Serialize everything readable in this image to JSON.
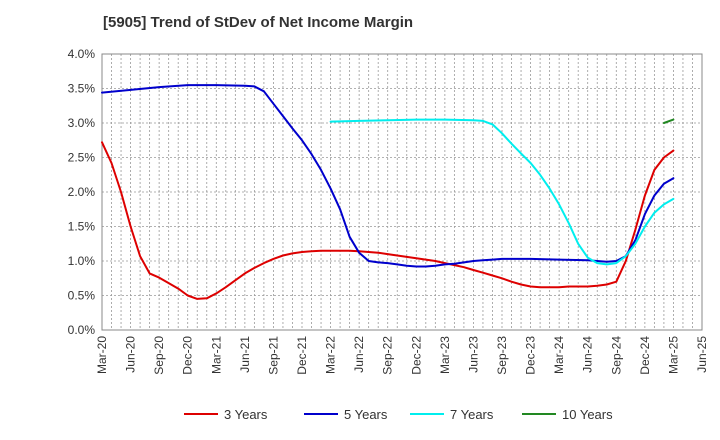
{
  "chart_data": {
    "type": "line",
    "title": "[5905]  Trend of StDev of Net Income Margin",
    "xlabel": "",
    "ylabel": "",
    "ylim": [
      0,
      4.0
    ],
    "yticks": [
      "0.0%",
      "0.5%",
      "1.0%",
      "1.5%",
      "2.0%",
      "2.5%",
      "3.0%",
      "3.5%",
      "4.0%"
    ],
    "xticks": [
      "Mar-20",
      "Jun-20",
      "Sep-20",
      "Dec-20",
      "Mar-21",
      "Jun-21",
      "Sep-21",
      "Dec-21",
      "Mar-22",
      "Jun-22",
      "Sep-22",
      "Dec-22",
      "Mar-23",
      "Jun-23",
      "Sep-23",
      "Dec-23",
      "Mar-24",
      "Jun-24",
      "Sep-24",
      "Dec-24",
      "Mar-25",
      "Jun-25"
    ],
    "grid": true,
    "legend_position": "bottom",
    "series": [
      {
        "name": "3 Years",
        "color": "#dd0000",
        "points": [
          [
            "Mar-20",
            2.72
          ],
          [
            "Apr-20",
            2.42
          ],
          [
            "May-20",
            2.0
          ],
          [
            "Jun-20",
            1.5
          ],
          [
            "Jul-20",
            1.07
          ],
          [
            "Aug-20",
            0.82
          ],
          [
            "Sep-20",
            0.76
          ],
          [
            "Oct-20",
            0.68
          ],
          [
            "Nov-20",
            0.6
          ],
          [
            "Dec-20",
            0.5
          ],
          [
            "Jan-21",
            0.45
          ],
          [
            "Feb-21",
            0.46
          ],
          [
            "Mar-21",
            0.53
          ],
          [
            "Apr-21",
            0.62
          ],
          [
            "May-21",
            0.72
          ],
          [
            "Jun-21",
            0.82
          ],
          [
            "Jul-21",
            0.9
          ],
          [
            "Aug-21",
            0.97
          ],
          [
            "Sep-21",
            1.03
          ],
          [
            "Oct-21",
            1.08
          ],
          [
            "Nov-21",
            1.11
          ],
          [
            "Dec-21",
            1.13
          ],
          [
            "Jan-22",
            1.14
          ],
          [
            "Feb-22",
            1.15
          ],
          [
            "Mar-22",
            1.15
          ],
          [
            "Apr-22",
            1.15
          ],
          [
            "May-22",
            1.15
          ],
          [
            "Jun-22",
            1.14
          ],
          [
            "Jul-22",
            1.13
          ],
          [
            "Aug-22",
            1.12
          ],
          [
            "Sep-22",
            1.1
          ],
          [
            "Oct-22",
            1.08
          ],
          [
            "Nov-22",
            1.06
          ],
          [
            "Dec-22",
            1.04
          ],
          [
            "Jan-23",
            1.02
          ],
          [
            "Feb-23",
            1.0
          ],
          [
            "Mar-23",
            0.97
          ],
          [
            "Apr-23",
            0.94
          ],
          [
            "May-23",
            0.91
          ],
          [
            "Jun-23",
            0.87
          ],
          [
            "Jul-23",
            0.83
          ],
          [
            "Aug-23",
            0.79
          ],
          [
            "Sep-23",
            0.75
          ],
          [
            "Oct-23",
            0.7
          ],
          [
            "Nov-23",
            0.66
          ],
          [
            "Dec-23",
            0.63
          ],
          [
            "Jan-24",
            0.62
          ],
          [
            "Feb-24",
            0.62
          ],
          [
            "Mar-24",
            0.62
          ],
          [
            "Apr-24",
            0.63
          ],
          [
            "May-24",
            0.63
          ],
          [
            "Jun-24",
            0.63
          ],
          [
            "Jul-24",
            0.64
          ],
          [
            "Aug-24",
            0.66
          ],
          [
            "Sep-24",
            0.7
          ],
          [
            "Oct-24",
            1.0
          ],
          [
            "Nov-24",
            1.45
          ],
          [
            "Dec-24",
            1.95
          ],
          [
            "Jan-25",
            2.32
          ],
          [
            "Feb-25",
            2.5
          ],
          [
            "Mar-25",
            2.6
          ]
        ]
      },
      {
        "name": "5 Years",
        "color": "#0000cc",
        "points": [
          [
            "Mar-20",
            3.44
          ],
          [
            "Jun-20",
            3.48
          ],
          [
            "Sep-20",
            3.52
          ],
          [
            "Dec-20",
            3.55
          ],
          [
            "Mar-21",
            3.55
          ],
          [
            "Jun-21",
            3.54
          ],
          [
            "Jul-21",
            3.53
          ],
          [
            "Aug-21",
            3.46
          ],
          [
            "Sep-21",
            3.28
          ],
          [
            "Oct-21",
            3.1
          ],
          [
            "Nov-21",
            2.92
          ],
          [
            "Dec-21",
            2.75
          ],
          [
            "Jan-22",
            2.55
          ],
          [
            "Feb-22",
            2.32
          ],
          [
            "Mar-22",
            2.05
          ],
          [
            "Apr-22",
            1.75
          ],
          [
            "May-22",
            1.35
          ],
          [
            "Jun-22",
            1.12
          ],
          [
            "Jul-22",
            1.0
          ],
          [
            "Aug-22",
            0.98
          ],
          [
            "Sep-22",
            0.97
          ],
          [
            "Oct-22",
            0.95
          ],
          [
            "Nov-22",
            0.93
          ],
          [
            "Dec-22",
            0.92
          ],
          [
            "Jan-23",
            0.92
          ],
          [
            "Feb-23",
            0.93
          ],
          [
            "Mar-23",
            0.95
          ],
          [
            "Apr-23",
            0.96
          ],
          [
            "May-23",
            0.98
          ],
          [
            "Jun-23",
            1.0
          ],
          [
            "Jul-23",
            1.01
          ],
          [
            "Aug-23",
            1.02
          ],
          [
            "Sep-23",
            1.03
          ],
          [
            "Oct-23",
            1.03
          ],
          [
            "Nov-23",
            1.03
          ],
          [
            "Dec-23",
            1.03
          ],
          [
            "Mar-24",
            1.02
          ],
          [
            "Jun-24",
            1.01
          ],
          [
            "Jul-24",
            1.0
          ],
          [
            "Aug-24",
            0.99
          ],
          [
            "Sep-24",
            1.0
          ],
          [
            "Oct-24",
            1.07
          ],
          [
            "Nov-24",
            1.3
          ],
          [
            "Dec-24",
            1.68
          ],
          [
            "Jan-25",
            1.95
          ],
          [
            "Feb-25",
            2.12
          ],
          [
            "Mar-25",
            2.2
          ]
        ]
      },
      {
        "name": "7 Years",
        "color": "#00eeee",
        "points": [
          [
            "Mar-22",
            3.02
          ],
          [
            "Jun-22",
            3.03
          ],
          [
            "Sep-22",
            3.04
          ],
          [
            "Dec-22",
            3.05
          ],
          [
            "Mar-23",
            3.05
          ],
          [
            "Jun-23",
            3.04
          ],
          [
            "Jul-23",
            3.03
          ],
          [
            "Aug-23",
            2.98
          ],
          [
            "Sep-23",
            2.85
          ],
          [
            "Oct-23",
            2.7
          ],
          [
            "Nov-23",
            2.56
          ],
          [
            "Dec-23",
            2.42
          ],
          [
            "Jan-24",
            2.25
          ],
          [
            "Feb-24",
            2.05
          ],
          [
            "Mar-24",
            1.82
          ],
          [
            "Apr-24",
            1.55
          ],
          [
            "May-24",
            1.25
          ],
          [
            "Jun-24",
            1.05
          ],
          [
            "Jul-24",
            0.97
          ],
          [
            "Aug-24",
            0.95
          ],
          [
            "Sep-24",
            0.97
          ],
          [
            "Oct-24",
            1.07
          ],
          [
            "Nov-24",
            1.25
          ],
          [
            "Dec-24",
            1.5
          ],
          [
            "Jan-25",
            1.7
          ],
          [
            "Feb-25",
            1.82
          ],
          [
            "Mar-25",
            1.9
          ]
        ]
      },
      {
        "name": "10 Years",
        "color": "#228822",
        "points": [
          [
            "Feb-25",
            3.0
          ],
          [
            "Mar-25",
            3.05
          ]
        ]
      }
    ]
  }
}
